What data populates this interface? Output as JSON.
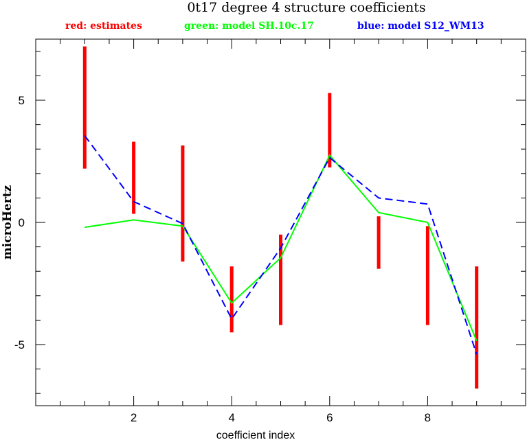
{
  "chart_data": {
    "type": "line",
    "title": "0t17 degree 4 structure coefficients",
    "xlabel": "coefficient index",
    "ylabel": "microHertz",
    "xlim": [
      0,
      10
    ],
    "ylim": [
      -7.5,
      7.5
    ],
    "xticks": [
      2,
      4,
      6,
      8
    ],
    "yticks": [
      -5,
      0,
      5
    ],
    "grid": false,
    "legend_position": "top",
    "legend": [
      {
        "text": "red: estimates",
        "color": "#ff0000"
      },
      {
        "text": "green: model SH.10c.17",
        "color": "#00ff00"
      },
      {
        "text": "blue: model S12_WM13",
        "color": "#0000ff"
      }
    ],
    "estimates": {
      "name": "red: estimates",
      "color": "#ff0000",
      "x": [
        1,
        2,
        3,
        4,
        5,
        6,
        7,
        8,
        9
      ],
      "low": [
        2.2,
        0.35,
        -1.6,
        -4.5,
        -4.2,
        2.25,
        -1.9,
        -4.2,
        -6.8
      ],
      "high": [
        7.2,
        3.3,
        3.15,
        -1.8,
        -0.5,
        5.3,
        0.25,
        -0.15,
        -1.8
      ]
    },
    "series": [
      {
        "name": "green: model SH.10c.17",
        "color": "#00ff00",
        "style": "solid",
        "x": [
          1,
          2,
          3,
          4,
          5,
          6,
          7,
          8,
          9
        ],
        "values": [
          -0.2,
          0.1,
          -0.15,
          -3.3,
          -1.45,
          2.75,
          0.4,
          0.0,
          -4.85
        ]
      },
      {
        "name": "blue: model S12_WM13",
        "color": "#0000ff",
        "style": "dashed",
        "x": [
          1,
          2,
          3,
          4,
          5,
          6,
          7,
          8,
          9
        ],
        "values": [
          3.55,
          0.85,
          -0.05,
          -3.95,
          -1.05,
          2.65,
          1.0,
          0.75,
          -5.4
        ]
      }
    ]
  }
}
